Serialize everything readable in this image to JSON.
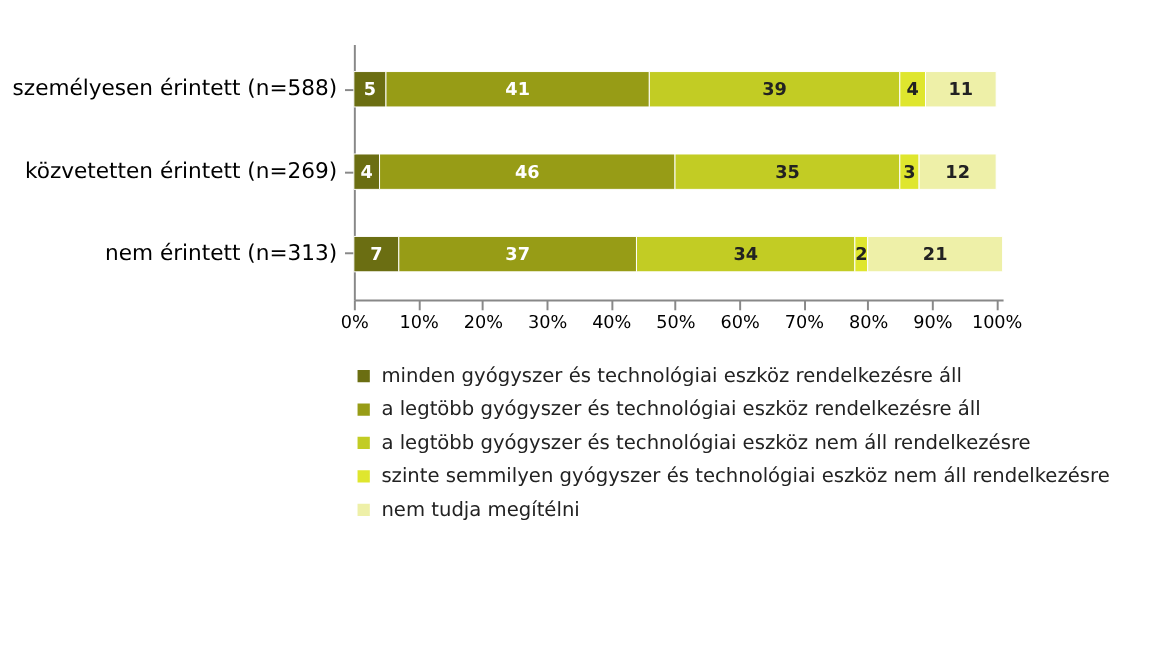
{
  "chart_data": {
    "type": "bar",
    "orientation": "horizontal",
    "stacked": true,
    "data_labels": true,
    "legend": "bottom",
    "grid": false,
    "categories": [
      "személyesen érintett (n=588)",
      "közvetetten érintett (n=269)",
      "nem érintett (n=313)"
    ],
    "xlim": [
      0,
      101
    ],
    "xticks": [
      {
        "value": 0,
        "label": "0%"
      },
      {
        "value": 10,
        "label": "10%"
      },
      {
        "value": 20,
        "label": "20%"
      },
      {
        "value": 30,
        "label": "30%"
      },
      {
        "value": 40,
        "label": "40%"
      },
      {
        "value": 50,
        "label": "50%"
      },
      {
        "value": 60,
        "label": "60%"
      },
      {
        "value": 70,
        "label": "70%"
      },
      {
        "value": 80,
        "label": "80%"
      },
      {
        "value": 90,
        "label": "90%"
      },
      {
        "value": 100,
        "label": "100%"
      }
    ],
    "series": [
      {
        "name": "minden gyógyszer és technológiai eszköz rendelkezésre áll",
        "color": "#6b6e12",
        "values": [
          5,
          4,
          7
        ]
      },
      {
        "name": "a legtöbb gyógyszer és technológiai eszköz rendelkezésre áll",
        "color": "#979c16",
        "values": [
          41,
          46,
          37
        ]
      },
      {
        "name": "a legtöbb gyógyszer és technológiai eszköz nem áll rendelkezésre",
        "color": "#c2cc24",
        "values": [
          39,
          35,
          34
        ]
      },
      {
        "name": "szinte semmilyen gyógyszer és technológiai eszköz nem áll rendelkezésre",
        "color": "#dfe62e",
        "values": [
          4,
          3,
          2
        ]
      },
      {
        "name": "nem tudja megítélni",
        "color": "#eef0a8",
        "values": [
          11,
          12,
          21
        ]
      }
    ]
  }
}
